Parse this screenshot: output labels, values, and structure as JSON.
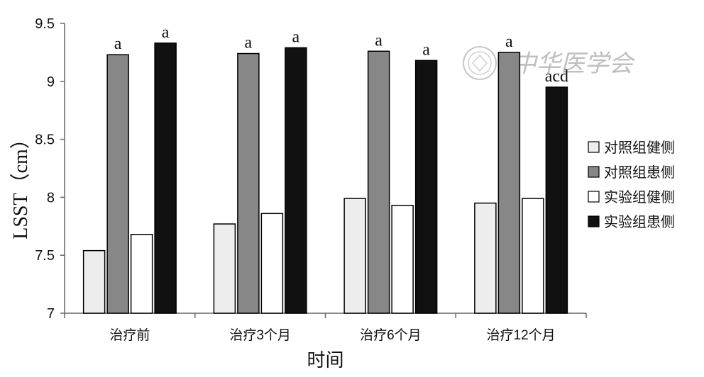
{
  "chart_data": {
    "type": "bar",
    "title": "",
    "xlabel": "时间",
    "ylabel": "LSST（cm）",
    "ylim": [
      7,
      9.5
    ],
    "yticks": [
      "7",
      "7.5",
      "8",
      "8.5",
      "9",
      "9.5"
    ],
    "grid": false,
    "legend_position": "right",
    "categories": [
      "治疗前",
      "治疗3个月",
      "治疗6个月",
      "治疗12个月"
    ],
    "series": [
      {
        "name": "对照组健侧",
        "color": "#ededed",
        "values": [
          7.54,
          7.77,
          7.99,
          7.95
        ],
        "annotations": [
          "",
          "",
          "",
          ""
        ]
      },
      {
        "name": "对照组患侧",
        "color": "#878787",
        "values": [
          9.23,
          9.24,
          9.26,
          9.25
        ],
        "annotations": [
          "a",
          "a",
          "a",
          "a"
        ]
      },
      {
        "name": "实验组健侧",
        "color": "#ffffff",
        "values": [
          7.68,
          7.86,
          7.93,
          7.99
        ],
        "annotations": [
          "",
          "",
          "",
          ""
        ]
      },
      {
        "name": "实验组患侧",
        "color": "#111111",
        "values": [
          9.33,
          9.29,
          9.18,
          8.95
        ],
        "annotations": [
          "a",
          "a",
          "a",
          "acd"
        ]
      }
    ]
  },
  "watermark": {
    "text": "中华医学会"
  }
}
